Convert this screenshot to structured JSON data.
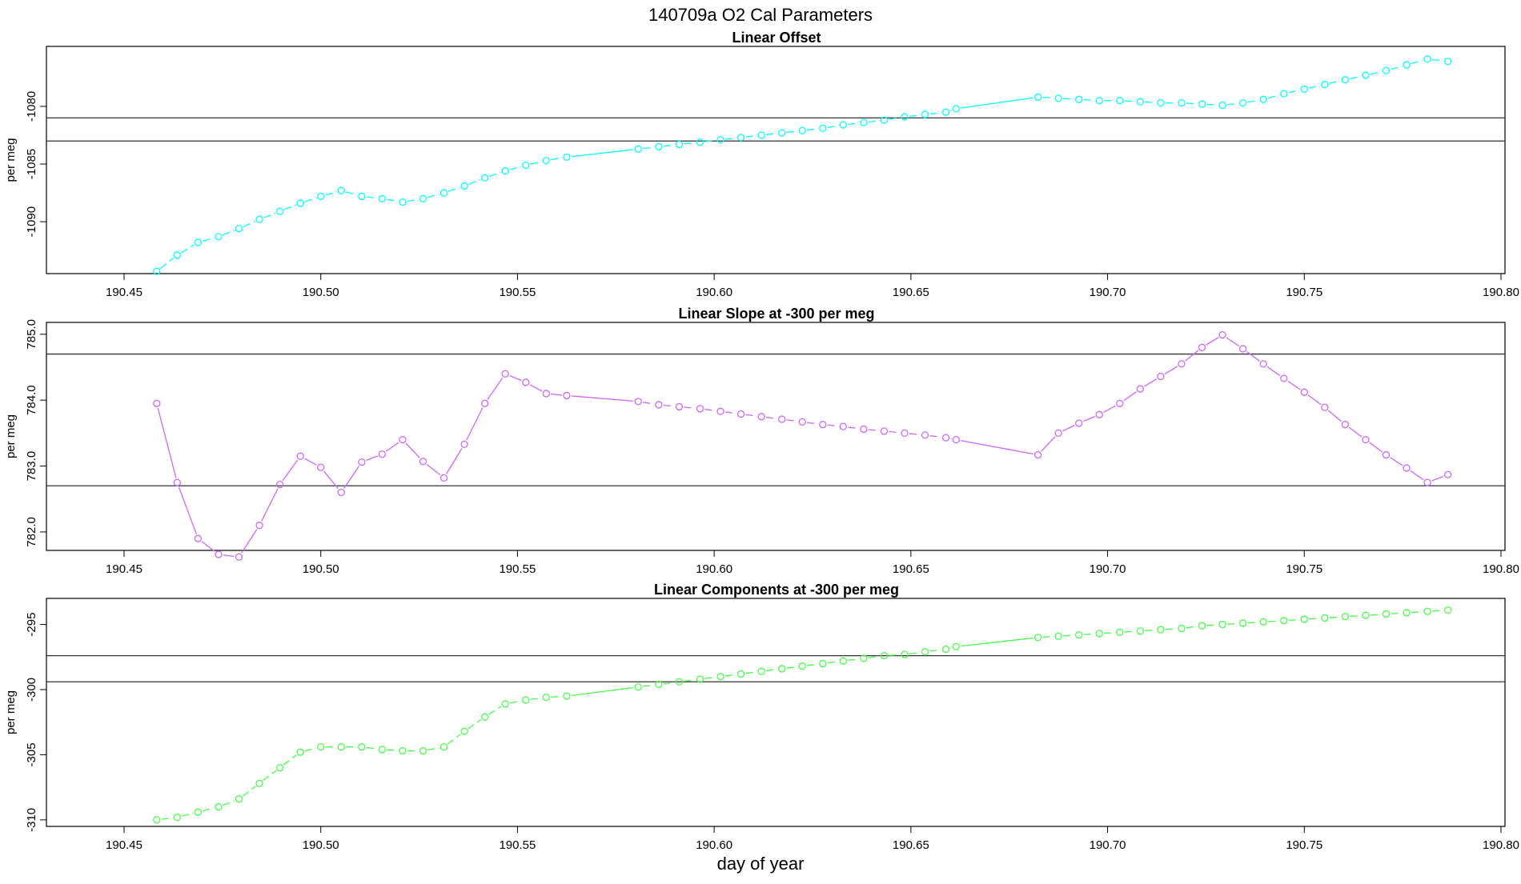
{
  "page": {
    "title": "140709a   O2 Cal Parameters",
    "xlabel": "day of year"
  },
  "chart_data": [
    {
      "type": "line",
      "title": "Linear Offset",
      "ylabel": "per meg",
      "color": "#00ffff",
      "xlim": [
        190.43,
        190.8
      ],
      "ylim": [
        -1094.5,
        -1074.8
      ],
      "xticks": [
        "190.45",
        "190.50",
        "190.55",
        "190.60",
        "190.65",
        "190.70",
        "190.75",
        "190.80"
      ],
      "yticks": [
        "-1080",
        "-1085",
        "-1090"
      ],
      "hlines": [
        -1081.0,
        -1083.0
      ],
      "x": [
        190.4583,
        190.4635,
        190.4688,
        190.474,
        190.4792,
        190.4844,
        190.4896,
        190.4948,
        190.5,
        190.5052,
        190.5104,
        190.5156,
        190.5208,
        190.526,
        190.5313,
        190.5365,
        190.5417,
        190.5469,
        190.5521,
        190.5573,
        190.5625,
        190.5807,
        190.5859,
        190.5911,
        190.5964,
        190.6016,
        190.6068,
        190.612,
        190.6172,
        190.6224,
        190.6276,
        190.6328,
        190.638,
        190.6432,
        190.6484,
        190.6536,
        190.6589,
        190.6615,
        190.6823,
        190.6875,
        190.6927,
        190.6979,
        190.7031,
        190.7083,
        190.7135,
        190.7188,
        190.724,
        190.7292,
        190.7344,
        190.7396,
        190.7448,
        190.75,
        190.7552,
        190.7604,
        190.7656,
        190.7708,
        190.776,
        190.7813,
        190.7865
      ],
      "y": [
        -1094.3,
        -1092.9,
        -1091.8,
        -1091.3,
        -1090.6,
        -1089.8,
        -1089.1,
        -1088.4,
        -1087.8,
        -1087.3,
        -1087.8,
        -1088.0,
        -1088.3,
        -1088.0,
        -1087.5,
        -1086.9,
        -1086.2,
        -1085.6,
        -1085.1,
        -1084.7,
        -1084.4,
        -1083.7,
        -1083.5,
        -1083.3,
        -1083.1,
        -1082.9,
        -1082.7,
        -1082.5,
        -1082.3,
        -1082.1,
        -1081.9,
        -1081.6,
        -1081.4,
        -1081.2,
        -1080.9,
        -1080.7,
        -1080.5,
        -1080.2,
        -1079.2,
        -1079.3,
        -1079.4,
        -1079.5,
        -1079.5,
        -1079.6,
        -1079.7,
        -1079.7,
        -1079.8,
        -1079.9,
        -1079.7,
        -1079.4,
        -1078.9,
        -1078.5,
        -1078.1,
        -1077.7,
        -1077.3,
        -1076.9,
        -1076.4,
        -1075.9,
        -1076.1
      ],
      "connect": "dashed",
      "connect_solid_after": [
        20,
        37
      ]
    },
    {
      "type": "line",
      "title": "Linear Slope at -300 per meg",
      "ylabel": "per meg",
      "color": "#cc66ff",
      "xlim": [
        190.43,
        190.8
      ],
      "ylim": [
        781.72,
        785.18
      ],
      "xticks": [
        "190.45",
        "190.50",
        "190.55",
        "190.60",
        "190.65",
        "190.70",
        "190.75",
        "190.80"
      ],
      "yticks": [
        "782.0",
        "783.0",
        "784.0",
        "785.0"
      ],
      "hlines": [
        784.7,
        782.7
      ],
      "x": [
        190.4583,
        190.4635,
        190.4688,
        190.474,
        190.4792,
        190.4844,
        190.4896,
        190.4948,
        190.5,
        190.5052,
        190.5104,
        190.5156,
        190.5208,
        190.526,
        190.5313,
        190.5365,
        190.5417,
        190.5469,
        190.5521,
        190.5573,
        190.5625,
        190.5807,
        190.5859,
        190.5911,
        190.5964,
        190.6016,
        190.6068,
        190.612,
        190.6172,
        190.6224,
        190.6276,
        190.6328,
        190.638,
        190.6432,
        190.6484,
        190.6536,
        190.6589,
        190.6615,
        190.6823,
        190.6875,
        190.6927,
        190.6979,
        190.7031,
        190.7083,
        190.7135,
        190.7188,
        190.724,
        190.7292,
        190.7344,
        190.7396,
        190.7448,
        190.75,
        190.7552,
        190.7604,
        190.7656,
        190.7708,
        190.776,
        190.7813,
        190.7865
      ],
      "y": [
        783.95,
        782.75,
        781.9,
        781.66,
        781.62,
        782.1,
        782.72,
        783.15,
        782.98,
        782.6,
        783.06,
        783.18,
        783.4,
        783.07,
        782.82,
        783.33,
        783.95,
        784.4,
        784.27,
        784.1,
        784.07,
        783.98,
        783.93,
        783.9,
        783.87,
        783.83,
        783.79,
        783.75,
        783.71,
        783.67,
        783.63,
        783.6,
        783.56,
        783.53,
        783.5,
        783.47,
        783.43,
        783.4,
        783.17,
        783.5,
        783.65,
        783.78,
        783.95,
        784.17,
        784.36,
        784.55,
        784.8,
        784.99,
        784.78,
        784.55,
        784.33,
        784.12,
        783.89,
        783.63,
        783.4,
        783.17,
        782.97,
        782.75,
        782.87
      ],
      "connect": "solid",
      "connect_dashed_from": 21,
      "connect_dashed_to": 37
    },
    {
      "type": "line",
      "title": "Linear Components at -300 per meg",
      "ylabel": "per meg",
      "color": "#44ff44",
      "xlim": [
        190.43,
        190.8
      ],
      "ylim": [
        -310.5,
        -293.0
      ],
      "xticks": [
        "190.45",
        "190.50",
        "190.55",
        "190.60",
        "190.65",
        "190.70",
        "190.75",
        "190.80"
      ],
      "yticks": [
        "-295",
        "-300",
        "-305",
        "-310"
      ],
      "hlines": [
        -297.4,
        -299.4
      ],
      "x": [
        190.4583,
        190.4635,
        190.4688,
        190.474,
        190.4792,
        190.4844,
        190.4896,
        190.4948,
        190.5,
        190.5052,
        190.5104,
        190.5156,
        190.5208,
        190.526,
        190.5313,
        190.5365,
        190.5417,
        190.5469,
        190.5521,
        190.5573,
        190.5625,
        190.5807,
        190.5859,
        190.5911,
        190.5964,
        190.6016,
        190.6068,
        190.612,
        190.6172,
        190.6224,
        190.6276,
        190.6328,
        190.638,
        190.6432,
        190.6484,
        190.6536,
        190.6589,
        190.6615,
        190.6823,
        190.6875,
        190.6927,
        190.6979,
        190.7031,
        190.7083,
        190.7135,
        190.7188,
        190.724,
        190.7292,
        190.7344,
        190.7396,
        190.7448,
        190.75,
        190.7552,
        190.7604,
        190.7656,
        190.7708,
        190.776,
        190.7813,
        190.7865
      ],
      "y": [
        -310.0,
        -309.8,
        -309.4,
        -309.0,
        -308.4,
        -307.2,
        -306.0,
        -304.8,
        -304.4,
        -304.4,
        -304.4,
        -304.6,
        -304.7,
        -304.7,
        -304.4,
        -303.2,
        -302.1,
        -301.1,
        -300.8,
        -300.6,
        -300.5,
        -299.8,
        -299.6,
        -299.4,
        -299.2,
        -299.0,
        -298.8,
        -298.6,
        -298.4,
        -298.2,
        -298.0,
        -297.8,
        -297.6,
        -297.4,
        -297.3,
        -297.1,
        -296.9,
        -296.7,
        -296.0,
        -295.9,
        -295.8,
        -295.7,
        -295.6,
        -295.5,
        -295.4,
        -295.3,
        -295.1,
        -295.0,
        -294.9,
        -294.8,
        -294.7,
        -294.6,
        -294.5,
        -294.4,
        -294.3,
        -294.2,
        -294.1,
        -294.0,
        -293.9
      ],
      "connect": "dashed",
      "connect_solid_after": [
        20,
        37
      ]
    }
  ]
}
